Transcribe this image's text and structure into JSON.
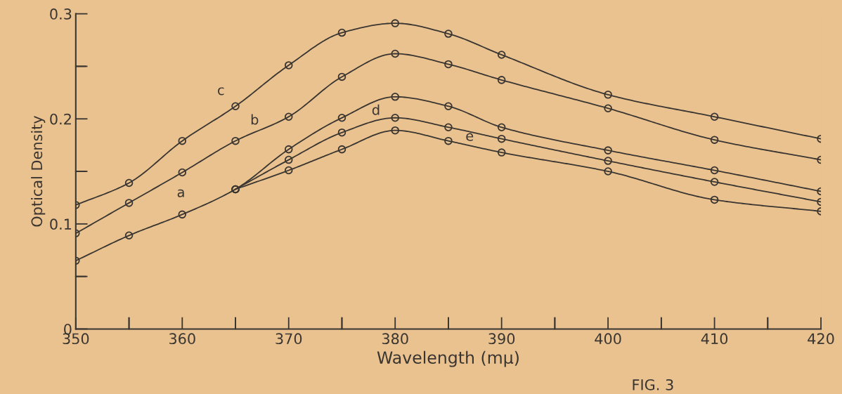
{
  "chart_data": {
    "type": "line",
    "xlabel": "Wavelength (mμ)",
    "ylabel": "Optical Density",
    "marker": "circle",
    "line_style": "solid",
    "grid": false,
    "xlim": [
      350,
      420
    ],
    "ylim": [
      0,
      0.3
    ],
    "xticks": [
      350,
      {
        "value": 355,
        "label": null
      },
      360,
      {
        "value": 365,
        "label": null
      },
      370,
      {
        "value": 375,
        "label": null
      },
      380,
      {
        "value": 385,
        "label": null
      },
      390,
      {
        "value": 395,
        "label": null
      },
      400,
      {
        "value": 405,
        "label": null
      },
      410,
      {
        "value": 415,
        "label": null
      },
      420
    ],
    "yticks": [
      0,
      {
        "value": 0.05,
        "label": null
      },
      0.1,
      {
        "value": 0.15,
        "label": null
      },
      0.2,
      {
        "value": 0.25,
        "label": null
      },
      0.3
    ],
    "series": [
      {
        "name": "c",
        "color": "#3a3530",
        "x": [
          350,
          355,
          360,
          365,
          370,
          375,
          380,
          385,
          390,
          400,
          410,
          420
        ],
        "values": [
          0.118,
          0.139,
          0.179,
          0.212,
          0.251,
          0.282,
          0.291,
          0.281,
          0.261,
          0.223,
          0.202,
          0.181
        ]
      },
      {
        "name": "b",
        "color": "#3a3530",
        "x": [
          350,
          355,
          360,
          365,
          370,
          375,
          380,
          385,
          390,
          400,
          410,
          420
        ],
        "values": [
          0.091,
          0.12,
          0.149,
          0.179,
          0.202,
          0.24,
          0.262,
          0.252,
          0.237,
          0.21,
          0.18,
          0.161
        ]
      },
      {
        "name": "a",
        "color": "#3a3530",
        "x": [
          350,
          355,
          360,
          365,
          370,
          375,
          380,
          385,
          390,
          400,
          410,
          420
        ],
        "values": [
          0.065,
          0.089,
          0.109,
          0.133,
          0.171,
          0.201,
          0.221,
          0.212,
          0.192,
          0.17,
          0.151,
          0.131
        ]
      },
      {
        "name": "d",
        "color": "#3a3530",
        "x": [
          365,
          370,
          375,
          380,
          385,
          390,
          400,
          410,
          420
        ],
        "values": [
          0.133,
          0.161,
          0.187,
          0.201,
          0.192,
          0.181,
          0.16,
          0.14,
          0.121
        ]
      },
      {
        "name": "e",
        "color": "#3a3530",
        "x": [
          365,
          370,
          375,
          380,
          385,
          390,
          400,
          410,
          420
        ],
        "values": [
          0.133,
          0.151,
          0.171,
          0.189,
          0.179,
          0.168,
          0.15,
          0.123,
          0.112
        ]
      }
    ],
    "annotations": [
      "FIG. 3"
    ]
  }
}
